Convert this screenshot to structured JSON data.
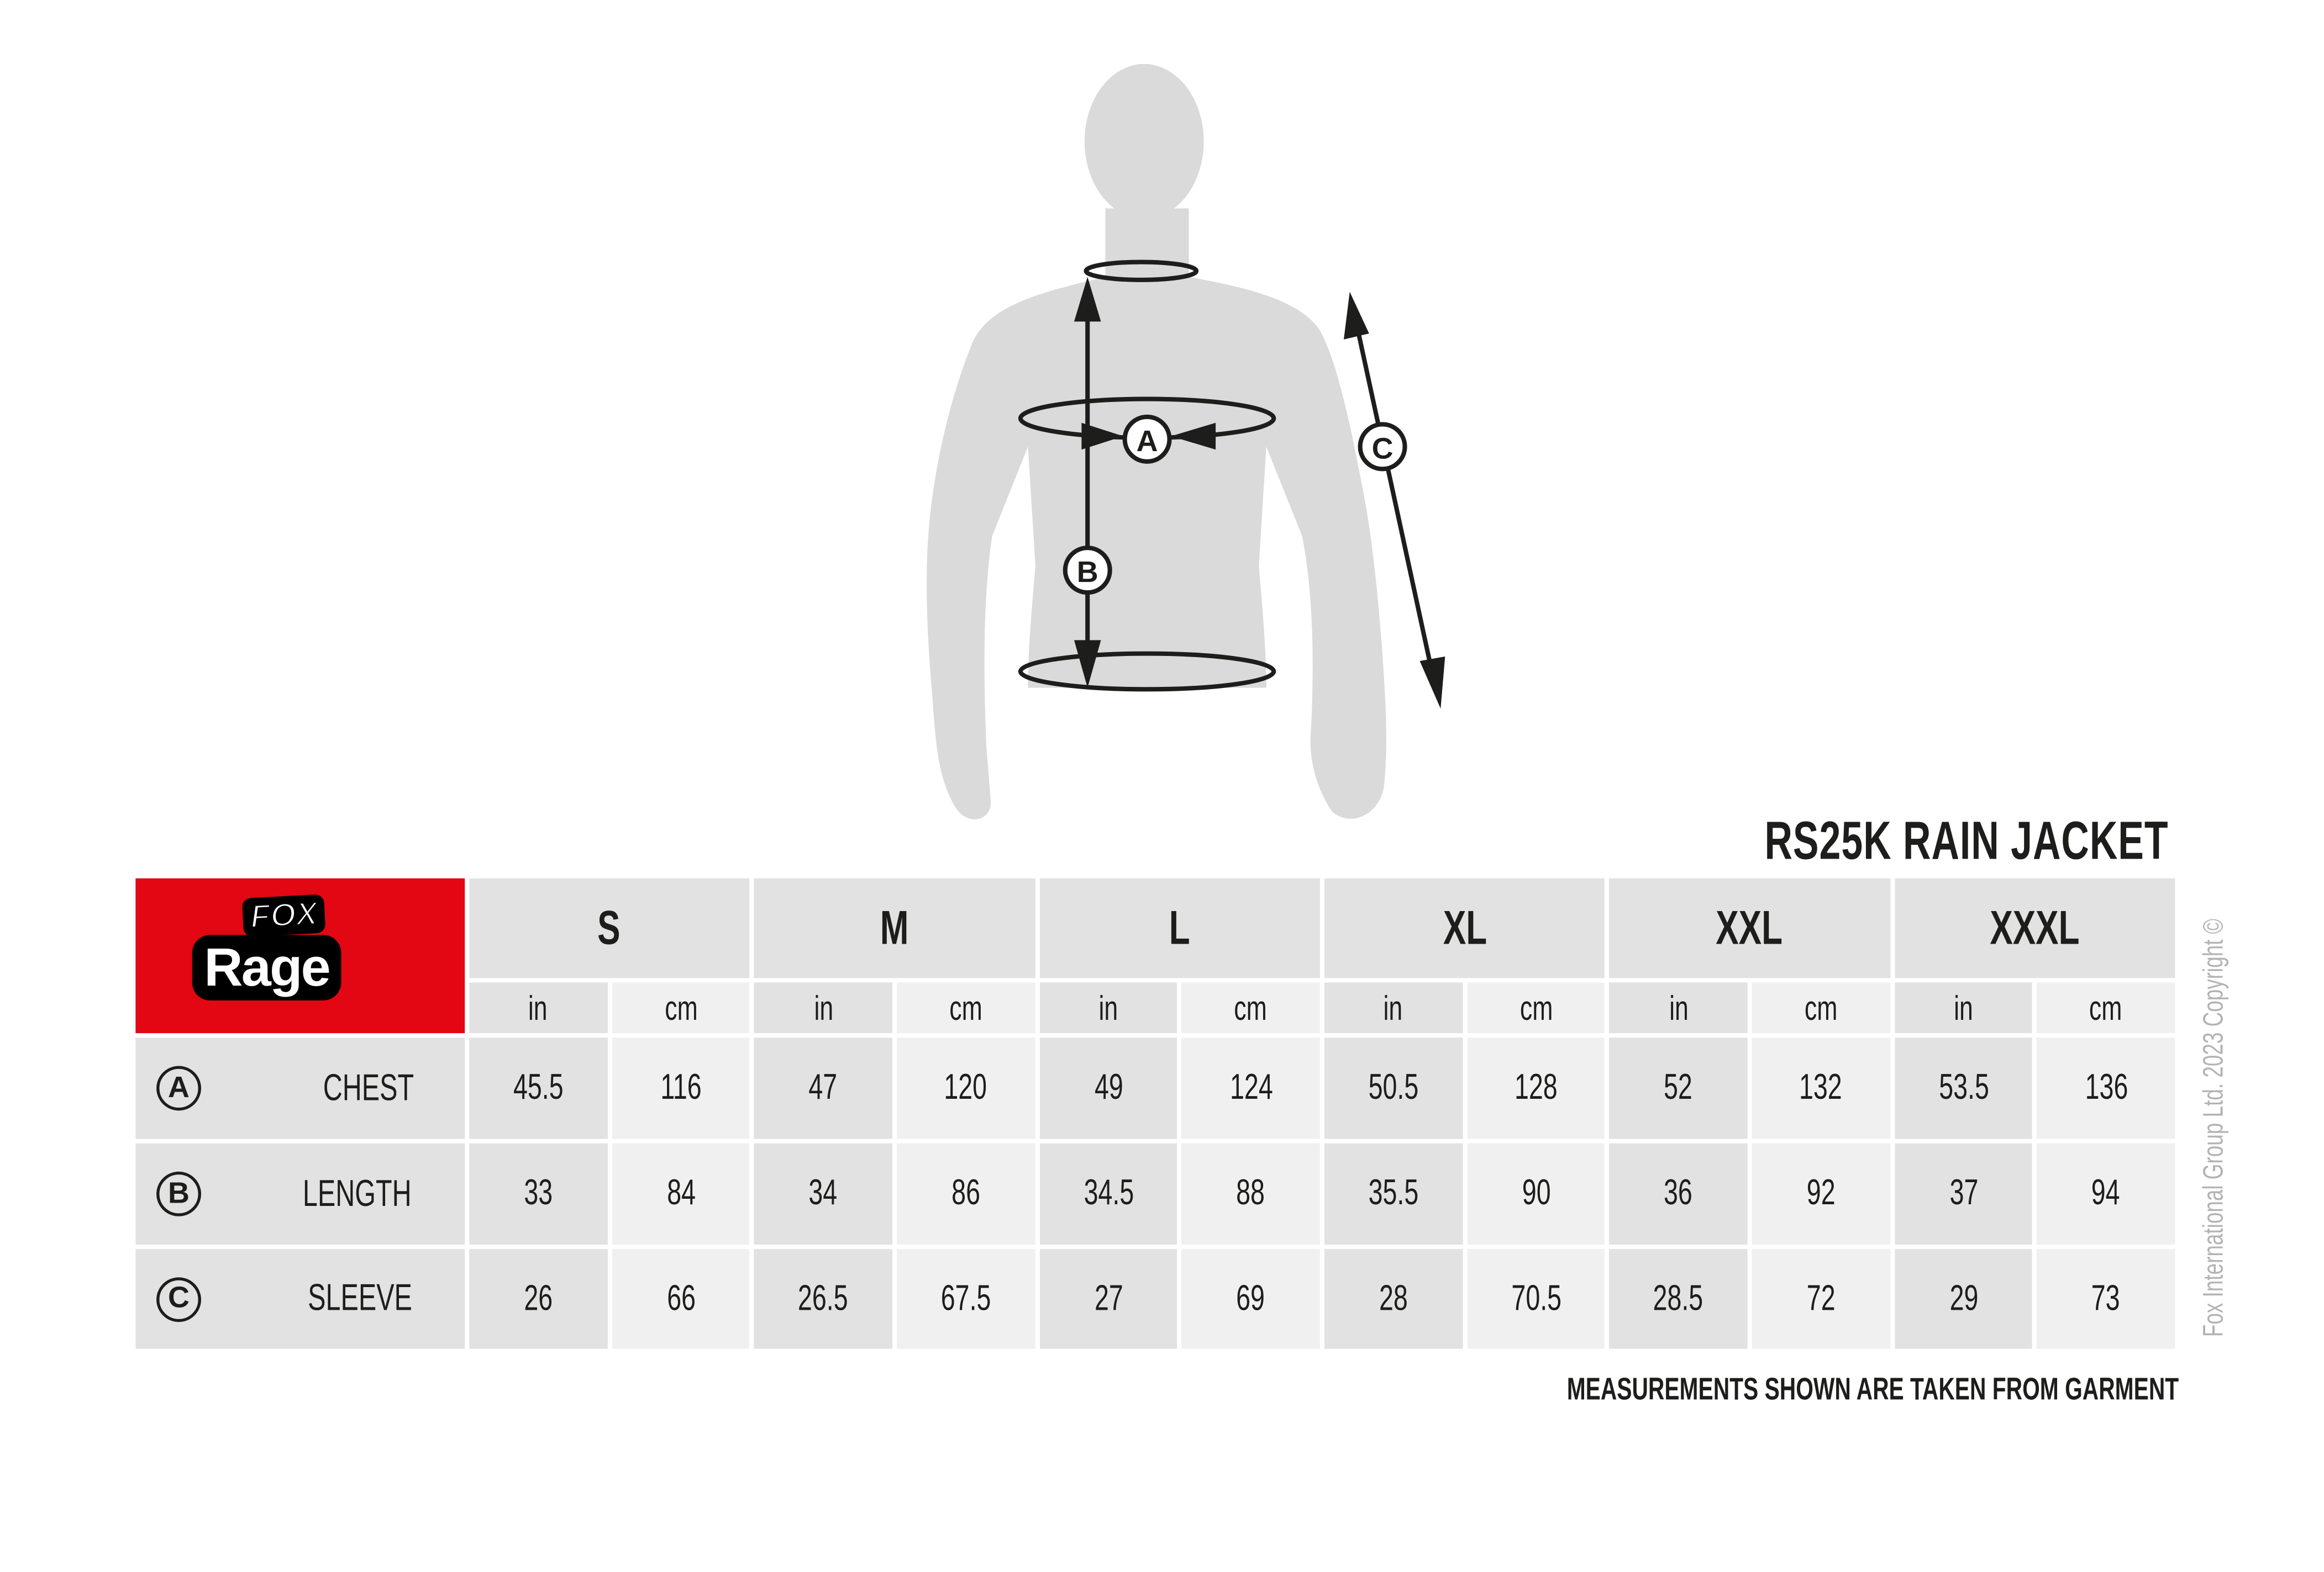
{
  "product_title": "RS25K RAIN JACKET",
  "logo": {
    "line1": "FOX",
    "line2": "Rage",
    "brand_color": "#e30613"
  },
  "figure_markers": [
    "A",
    "B",
    "C"
  ],
  "sizes": [
    "S",
    "M",
    "L",
    "XL",
    "XXL",
    "XXXL"
  ],
  "units": [
    "in",
    "cm"
  ],
  "rows": [
    {
      "marker": "A",
      "label": "CHEST",
      "values": [
        "45.5",
        "116",
        "47",
        "120",
        "49",
        "124",
        "50.5",
        "128",
        "52",
        "132",
        "53.5",
        "136"
      ]
    },
    {
      "marker": "B",
      "label": "LENGTH",
      "values": [
        "33",
        "84",
        "34",
        "86",
        "34.5",
        "88",
        "35.5",
        "90",
        "36",
        "92",
        "37",
        "94"
      ]
    },
    {
      "marker": "C",
      "label": "SLEEVE",
      "values": [
        "26",
        "66",
        "26.5",
        "67.5",
        "27",
        "69",
        "28",
        "70.5",
        "28.5",
        "72",
        "29",
        "73"
      ]
    }
  ],
  "note": "MEASUREMENTS SHOWN ARE TAKEN FROM GARMENT",
  "copyright": "Fox International Group Ltd. 2023 Copyright ©"
}
